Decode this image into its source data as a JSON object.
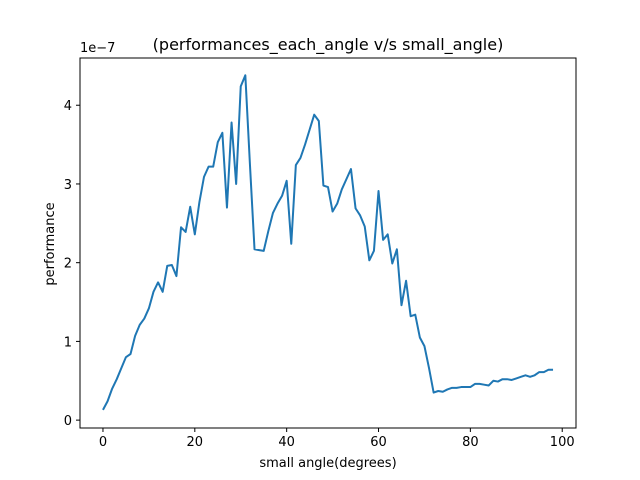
{
  "chart_data": {
    "type": "line",
    "title": "(performances_each_angle v/s small_angle)",
    "xlabel": "small angle(degrees)",
    "ylabel": "performance",
    "scale_label": "1e−7",
    "xlim": [
      -5,
      103
    ],
    "ylim": [
      -0.1,
      4.6
    ],
    "xticks": [
      0,
      20,
      40,
      60,
      80,
      100
    ],
    "yticks": [
      0,
      1,
      2,
      3,
      4
    ],
    "grid": false,
    "line_color": "#1f77b4",
    "series": [
      {
        "name": "performance",
        "x": [
          0,
          1,
          2,
          3,
          4,
          5,
          6,
          7,
          8,
          9,
          10,
          11,
          12,
          13,
          14,
          15,
          16,
          17,
          18,
          19,
          20,
          21,
          22,
          23,
          24,
          25,
          26,
          27,
          28,
          29,
          30,
          31,
          32,
          33,
          34,
          35,
          36,
          37,
          38,
          39,
          40,
          41,
          42,
          43,
          44,
          45,
          46,
          47,
          48,
          49,
          50,
          51,
          52,
          53,
          54,
          55,
          56,
          57,
          58,
          59,
          60,
          61,
          62,
          63,
          64,
          65,
          66,
          67,
          68,
          69,
          70,
          71,
          72,
          73,
          74,
          75,
          76,
          77,
          78,
          79,
          80,
          81,
          82,
          83,
          84,
          85,
          86,
          87,
          88,
          89,
          90,
          91,
          92,
          93,
          94,
          95,
          96,
          97,
          98
        ],
        "values": [
          0.13,
          0.24,
          0.4,
          0.52,
          0.66,
          0.8,
          0.84,
          1.07,
          1.21,
          1.29,
          1.42,
          1.63,
          1.75,
          1.63,
          1.96,
          1.97,
          1.83,
          2.45,
          2.39,
          2.71,
          2.36,
          2.77,
          3.09,
          3.22,
          3.22,
          3.53,
          3.65,
          2.7,
          3.78,
          3.0,
          4.24,
          4.38,
          3.25,
          2.17,
          2.16,
          2.15,
          2.4,
          2.63,
          2.75,
          2.85,
          3.04,
          2.24,
          3.24,
          3.33,
          3.5,
          3.69,
          3.88,
          3.8,
          2.98,
          2.96,
          2.65,
          2.75,
          2.93,
          3.06,
          3.19,
          2.69,
          2.6,
          2.46,
          2.03,
          2.15,
          2.91,
          2.29,
          2.36,
          1.99,
          2.17,
          1.46,
          1.77,
          1.32,
          1.34,
          1.05,
          0.94,
          0.66,
          0.35,
          0.37,
          0.36,
          0.39,
          0.41,
          0.41,
          0.42,
          0.42,
          0.42,
          0.46,
          0.46,
          0.45,
          0.44,
          0.5,
          0.49,
          0.52,
          0.52,
          0.51,
          0.53,
          0.55,
          0.57,
          0.55,
          0.57,
          0.61,
          0.61,
          0.64,
          0.64
        ]
      }
    ]
  }
}
